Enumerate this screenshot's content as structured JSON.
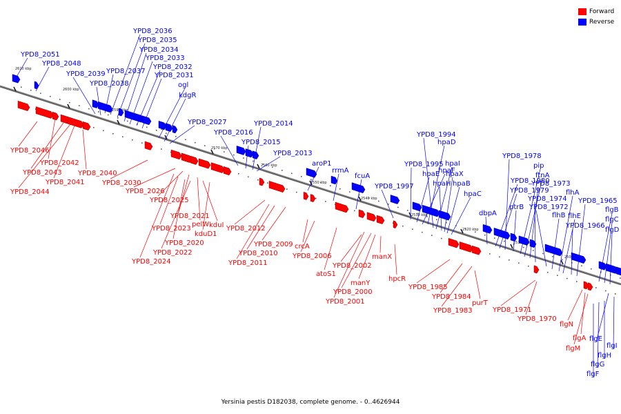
{
  "legend": {
    "forward_label": "Forward",
    "reverse_label": "Reverse",
    "forward_color": "#ff0000",
    "reverse_color": "#0000ff"
  },
  "caption": "Yersinia pestis D182038, complete genome. - 0..4626944",
  "ticks": [
    "2610 kbp",
    "2600 kbp",
    "2590 kbp",
    "2580 kbp",
    "2570 kbp",
    "2560 kbp",
    "2550 kbp",
    "2540 kbp",
    "2530 kbp",
    "2520 kbp",
    "2510 kbp",
    "2500 kbp"
  ],
  "reverse_genes": [
    "YPD8_2051",
    "YPD8_2048",
    "YPD8_2039",
    "YPD8_2038",
    "YPD8_2037",
    "YPD8_2036",
    "YPD8_2035",
    "YPD8_2034",
    "YPD8_2033",
    "YPD8_2032",
    "YPD8_2031",
    "ogl",
    "kdgR",
    "YPD8_2027",
    "YPD8_2016",
    "YPD8_2015",
    "YPD8_2014",
    "YPD8_2013",
    "aroP1",
    "rrmA",
    "fcuA",
    "YPD8_1997",
    "YPD8_1995",
    "hpaE",
    "hpaF",
    "hpaD",
    "YPD8_1994",
    "hpaI",
    "hpaH",
    "hpaX",
    "hpaB",
    "hpaC",
    "dbpA",
    "YPD8_1980",
    "YPD8_1979",
    "YPD8_1978",
    "ptrB",
    "pip",
    "ftnA",
    "YPD8_1973",
    "YPD8_1974",
    "YPD8_1972",
    "flhB",
    "flhA",
    "flhE",
    "YPD8_1966",
    "YPD8_1965",
    "flgB",
    "flgC",
    "flgD",
    "flgE",
    "flgI",
    "flgH",
    "flgG",
    "flgF"
  ],
  "forward_genes": [
    "YPD8_2046",
    "YPD8_2042",
    "YPD8_2043",
    "YPD8_2044",
    "YPD8_2041",
    "YPD8_2040",
    "YPD8_2030",
    "YPD8_2026",
    "YPD8_2025",
    "YPD8_2021",
    "pelW",
    "kduI",
    "kduD1",
    "YPD8_2023",
    "YPD8_2020",
    "YPD8_2022",
    "YPD8_2024",
    "YPD8_2012",
    "YPD8_2009",
    "YPD8_2010",
    "YPD8_2011",
    "crcA",
    "YPD8_2006",
    "atoS1",
    "YPD8_2002",
    "manX",
    "manY",
    "YPD8_2000",
    "YPD8_2001",
    "hpcR",
    "YPD8_1985",
    "YPD8_1984",
    "YPD8_1983",
    "purT",
    "YPD8_1971",
    "YPD8_1970",
    "flgN",
    "flgA",
    "flgM"
  ]
}
